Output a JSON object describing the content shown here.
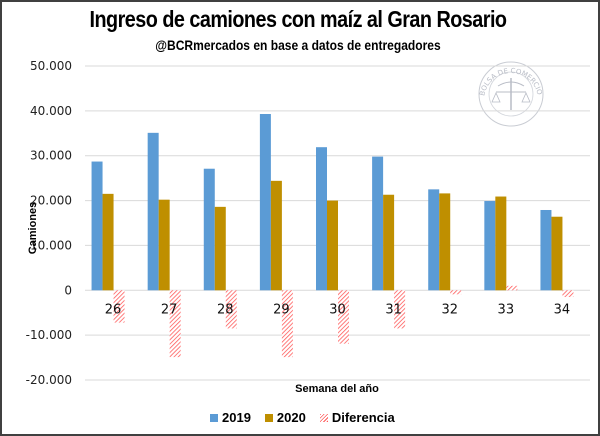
{
  "header": {
    "title": "Ingreso de camiones con maíz al Gran Rosario",
    "subtitle": "@BCRmercados en base a datos de entregadores"
  },
  "watermark": {
    "icon": "seal-icon",
    "text": "BOLSA DE COMERCIO DE ROSARIO"
  },
  "colors": {
    "series_2019": "#5B9BD5",
    "series_2020": "#BF8F00",
    "diferencia": "#FF5A5A",
    "grid": "#D9D9D9",
    "border": "#404040"
  },
  "chart_data": {
    "type": "bar",
    "title": "Ingreso de camiones con maíz al Gran Rosario",
    "subtitle": "@BCRmercados en base a datos de entregadores",
    "xlabel": "Semana del año",
    "ylabel": "Camiones",
    "ylim": [
      -20000,
      50000
    ],
    "yticks": [
      50000,
      40000,
      30000,
      20000,
      10000,
      0,
      -10000,
      -20000
    ],
    "ytick_labels": [
      "50.000",
      "40.000",
      "30.000",
      "20.000",
      "10.000",
      "0",
      "-10.000",
      "-20.000"
    ],
    "grid": true,
    "legend_position": "bottom",
    "categories": [
      "26",
      "27",
      "28",
      "29",
      "30",
      "31",
      "32",
      "33",
      "34"
    ],
    "series": [
      {
        "name": "2019",
        "style": "solid",
        "values": [
          28700,
          35100,
          27100,
          39300,
          31900,
          29800,
          22500,
          19900,
          17900
        ]
      },
      {
        "name": "2020",
        "style": "solid",
        "values": [
          21500,
          20200,
          18600,
          24400,
          20000,
          21300,
          21600,
          20900,
          16400
        ]
      },
      {
        "name": "Diferencia",
        "style": "hatched",
        "values": [
          -7200,
          -14900,
          -8500,
          -14900,
          -11900,
          -8500,
          -900,
          1000,
          -1500
        ]
      }
    ]
  }
}
